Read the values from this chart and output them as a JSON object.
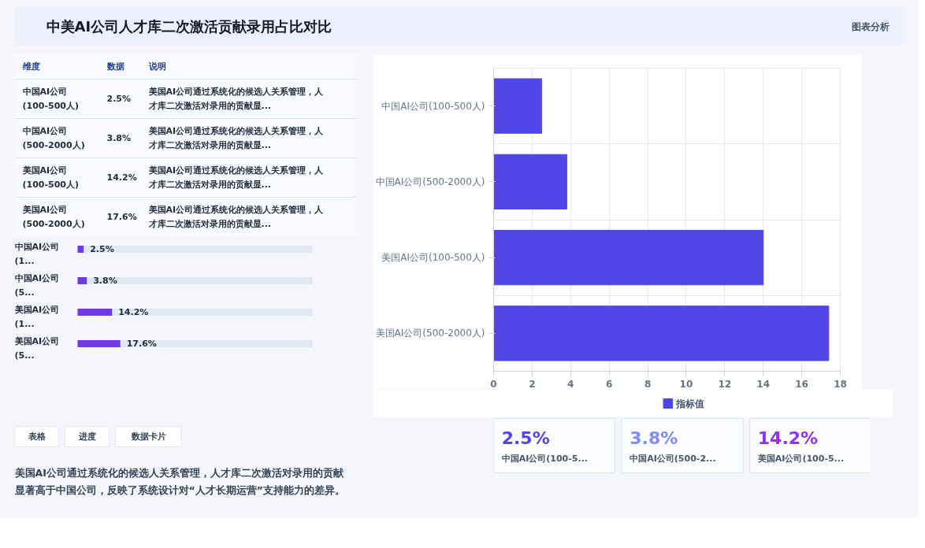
{
  "chart_data": [
    {
      "type": "other",
      "title": "中美AI公司人才库二次激活贡献录用占比对比",
      "annotations": [
        "图表分析"
      ]
    },
    {
      "type": "other",
      "annotations": [
        "维度",
        "数据",
        "说明",
        "中国AI公司(100-500人)",
        "2.5%",
        "美国AI公司通过系统化的候选人关系管理，人才库二次激活对录用的贡献显...",
        "中国AI公司(500-2000人)",
        "3.8%",
        "美国AI公司通过系统化的候选人关系管理，人才库二次激活对录用的贡献显...",
        "美国AI公司(100-500人)",
        "14.2%",
        "美国AI公司通过系统化的候选人关系管理，人才库二次激活对录用的贡献显...",
        "美国AI公司(500-2000人)",
        "17.6%",
        "美国AI公司通过系统化的候选人关系管理，人才库二次激活对录用的贡献显..."
      ]
    },
    {
      "type": "bar",
      "orientation": "horizontal",
      "categories": [
        "中国AI公司(1...",
        "中国AI公司(5...",
        "美国AI公司(1...",
        "美国AI公司(5..."
      ],
      "values": [
        2.5,
        3.8,
        14.2,
        17.6
      ],
      "value_labels": [
        "2.5%",
        "3.8%",
        "14.2%",
        "17.6%"
      ],
      "color": "#6d3ae6"
    },
    {
      "type": "other",
      "categories": [
        "表格",
        "进度",
        "数据卡片"
      ],
      "annotations": [
        "美国AI公司通过系统化的候选人关系管理，人才库二次激活对录用的贡献显著高于中国公司，反映了系统设计对“人才长期运营”支持能力的差异。"
      ]
    },
    {
      "type": "bar",
      "orientation": "horizontal",
      "categories": [
        "中国AI公司(100-500人)",
        "中国AI公司(500-2000人)",
        "美国AI公司(100-500人)",
        "美国AI公司(500-2000人)"
      ],
      "series": [
        {
          "name": "指标值",
          "color": "#4f46e5",
          "values": [
            2.5,
            3.8,
            14.0,
            17.4
          ]
        }
      ],
      "xlim": [
        0,
        18
      ],
      "xticks": [
        0,
        2,
        4,
        6,
        8,
        10,
        12,
        14,
        16,
        18
      ],
      "grid": true,
      "legend": "bottom"
    },
    {
      "type": "other",
      "categories": [
        "中国AI公司(100-5...",
        "中国AI公司(500-2...",
        "美国AI公司(100-5..."
      ],
      "value_labels": [
        "2.5%",
        "3.8%",
        "14.2%"
      ]
    }
  ]
}
